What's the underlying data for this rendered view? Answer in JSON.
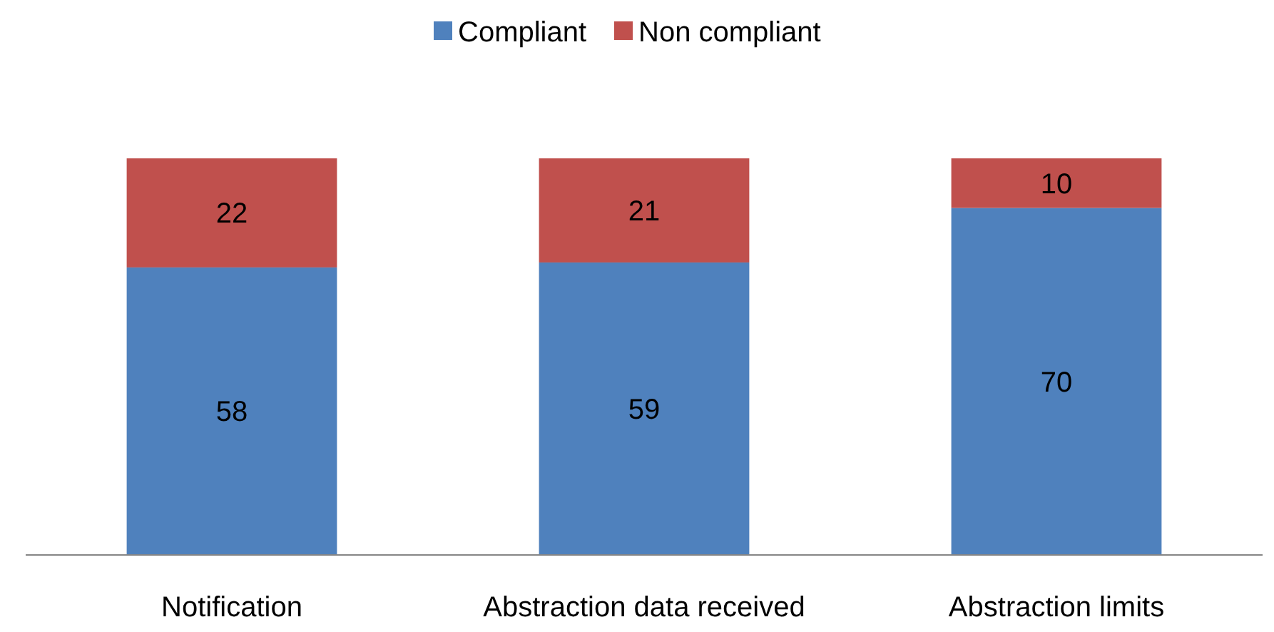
{
  "chart_data": {
    "type": "bar",
    "stacked": true,
    "categories": [
      "Notification",
      "Abstraction data received",
      "Abstraction limits"
    ],
    "series": [
      {
        "name": "Compliant",
        "color": "#4f81bd",
        "values": [
          58,
          59,
          70
        ]
      },
      {
        "name": "Non compliant",
        "color": "#c0504d",
        "values": [
          22,
          21,
          10
        ]
      }
    ],
    "data_labels": true,
    "legend": "top"
  }
}
